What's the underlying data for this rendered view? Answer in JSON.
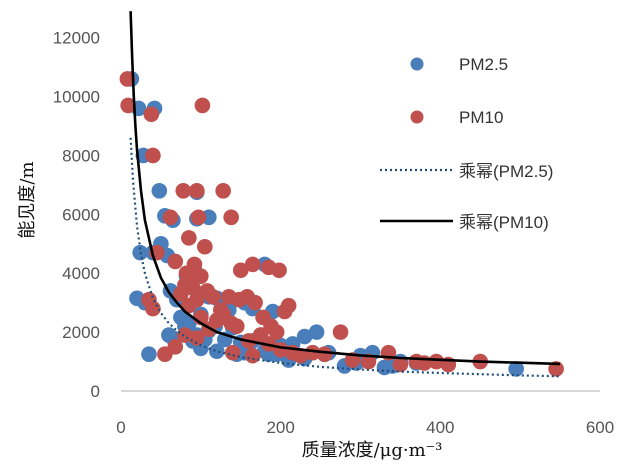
{
  "chart_data": {
    "type": "scatter",
    "xlabel": "质量浓度/μg·m⁻³",
    "ylabel": "能见度/m",
    "xlim": [
      0,
      600
    ],
    "ylim": [
      0,
      12500
    ],
    "xticks": [
      "0",
      "200",
      "400",
      "600"
    ],
    "yticks": [
      "0",
      "2000",
      "4000",
      "6000",
      "8000",
      "10000",
      "12000"
    ],
    "grid": false,
    "legend_position": "right",
    "series": [
      {
        "name": "PM2.5",
        "kind": "scatter",
        "color": "#4a7ebb",
        "points": [
          [
            13,
            10600
          ],
          [
            22,
            9600
          ],
          [
            42,
            9600
          ],
          [
            28,
            8000
          ],
          [
            40,
            4700
          ],
          [
            48,
            6800
          ],
          [
            55,
            5950
          ],
          [
            65,
            5800
          ],
          [
            50,
            5000
          ],
          [
            24,
            4700
          ],
          [
            58,
            4600
          ],
          [
            62,
            3400
          ],
          [
            70,
            3100
          ],
          [
            82,
            3900
          ],
          [
            88,
            3600
          ],
          [
            92,
            4100
          ],
          [
            20,
            3150
          ],
          [
            30,
            3000
          ],
          [
            95,
            6750
          ],
          [
            110,
            5900
          ],
          [
            95,
            5850
          ],
          [
            120,
            3150
          ],
          [
            130,
            2950
          ],
          [
            140,
            3100
          ],
          [
            155,
            3000
          ],
          [
            165,
            2800
          ],
          [
            75,
            2500
          ],
          [
            85,
            2300
          ],
          [
            100,
            2600
          ],
          [
            110,
            2050
          ],
          [
            125,
            2500
          ],
          [
            140,
            2150
          ],
          [
            105,
            1750
          ],
          [
            130,
            1750
          ],
          [
            95,
            1900
          ],
          [
            65,
            1800
          ],
          [
            35,
            1250
          ],
          [
            80,
            2200
          ],
          [
            100,
            1450
          ],
          [
            120,
            1350
          ],
          [
            145,
            1250
          ],
          [
            150,
            1650
          ],
          [
            165,
            1700
          ],
          [
            180,
            1350
          ],
          [
            195,
            1250
          ],
          [
            210,
            1050
          ],
          [
            230,
            1850
          ],
          [
            245,
            2000
          ],
          [
            260,
            1300
          ],
          [
            280,
            850
          ],
          [
            300,
            1200
          ],
          [
            315,
            1300
          ],
          [
            330,
            800
          ],
          [
            350,
            1000
          ],
          [
            370,
            950
          ],
          [
            180,
            4300
          ],
          [
            190,
            2700
          ],
          [
            200,
            1550
          ],
          [
            215,
            1600
          ],
          [
            230,
            1100
          ],
          [
            255,
            1250
          ],
          [
            295,
            950
          ],
          [
            340,
            850
          ],
          [
            495,
            750
          ],
          [
            90,
            1700
          ],
          [
            155,
            1300
          ],
          [
            175,
            1900
          ],
          [
            110,
            3200
          ],
          [
            60,
            1900
          ],
          [
            185,
            1250
          ],
          [
            135,
            2750
          ],
          [
            118,
            2200
          ]
        ]
      },
      {
        "name": "PM10",
        "kind": "scatter",
        "color": "#c0504d",
        "points": [
          [
            8,
            10600
          ],
          [
            9,
            9700
          ],
          [
            38,
            9400
          ],
          [
            102,
            9700
          ],
          [
            40,
            8000
          ],
          [
            78,
            6800
          ],
          [
            95,
            6800
          ],
          [
            128,
            6800
          ],
          [
            62,
            5900
          ],
          [
            97,
            5900
          ],
          [
            138,
            5900
          ],
          [
            85,
            5200
          ],
          [
            45,
            4700
          ],
          [
            68,
            4400
          ],
          [
            82,
            4000
          ],
          [
            88,
            3700
          ],
          [
            92,
            4300
          ],
          [
            100,
            3900
          ],
          [
            105,
            4900
          ],
          [
            150,
            4100
          ],
          [
            165,
            4300
          ],
          [
            185,
            4200
          ],
          [
            198,
            4100
          ],
          [
            75,
            3300
          ],
          [
            80,
            3600
          ],
          [
            90,
            3500
          ],
          [
            95,
            3100
          ],
          [
            108,
            3400
          ],
          [
            115,
            3200
          ],
          [
            135,
            3200
          ],
          [
            148,
            3100
          ],
          [
            158,
            3200
          ],
          [
            168,
            3000
          ],
          [
            178,
            2500
          ],
          [
            188,
            2200
          ],
          [
            195,
            2000
          ],
          [
            205,
            2700
          ],
          [
            210,
            2900
          ],
          [
            35,
            3100
          ],
          [
            40,
            2800
          ],
          [
            80,
            1900
          ],
          [
            95,
            1800
          ],
          [
            100,
            2500
          ],
          [
            110,
            2100
          ],
          [
            120,
            2400
          ],
          [
            128,
            2600
          ],
          [
            138,
            2300
          ],
          [
            145,
            2200
          ],
          [
            160,
            1700
          ],
          [
            175,
            1900
          ],
          [
            185,
            1600
          ],
          [
            200,
            1400
          ],
          [
            215,
            1300
          ],
          [
            225,
            1200
          ],
          [
            240,
            1300
          ],
          [
            255,
            1250
          ],
          [
            275,
            2000
          ],
          [
            290,
            1050
          ],
          [
            310,
            1000
          ],
          [
            335,
            1300
          ],
          [
            350,
            900
          ],
          [
            370,
            1000
          ],
          [
            380,
            950
          ],
          [
            395,
            1000
          ],
          [
            410,
            900
          ],
          [
            450,
            1000
          ],
          [
            545,
            750
          ],
          [
            55,
            1250
          ],
          [
            68,
            1500
          ],
          [
            140,
            1300
          ],
          [
            165,
            1200
          ],
          [
            85,
            2900
          ],
          [
            125,
            2750
          ]
        ]
      },
      {
        "name": "乘幂(PM2.5)",
        "kind": "fit-line",
        "style": "dotted",
        "color": "#1f4e79",
        "x": [
          12,
          15,
          20,
          25,
          30,
          40,
          50,
          60,
          70,
          80,
          100,
          120,
          150,
          200,
          250,
          300,
          350,
          400,
          450,
          500,
          550
        ],
        "y": [
          8600,
          7150,
          5600,
          4650,
          4000,
          3150,
          2650,
          2300,
          2050,
          1850,
          1550,
          1350,
          1150,
          950,
          820,
          730,
          660,
          610,
          570,
          530,
          500
        ]
      },
      {
        "name": "乘幂(PM10)",
        "kind": "fit-line",
        "style": "solid",
        "color": "#000000",
        "x": [
          12,
          14,
          16,
          18,
          20,
          25,
          30,
          40,
          50,
          60,
          70,
          80,
          100,
          120,
          150,
          200,
          250,
          300,
          350,
          400,
          450,
          500,
          550
        ],
        "y": [
          12900,
          11300,
          10000,
          9000,
          8200,
          6800,
          5800,
          4600,
          3850,
          3350,
          3000,
          2700,
          2300,
          2000,
          1750,
          1480,
          1330,
          1210,
          1120,
          1060,
          1000,
          960,
          920
        ]
      }
    ]
  }
}
